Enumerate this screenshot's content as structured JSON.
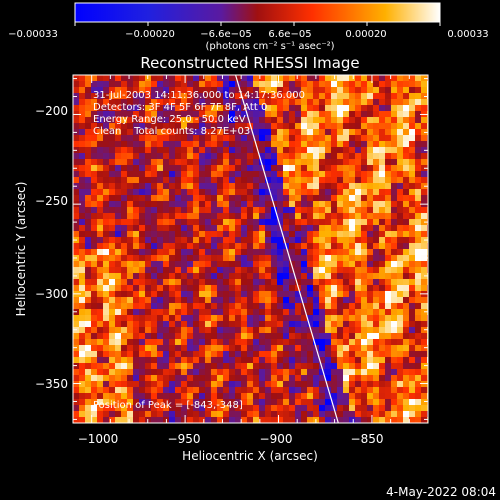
{
  "chart_data": {
    "type": "heatmap",
    "title": "Reconstructed RHESSI Image",
    "xlabel": "Heliocentric X (arcsec)",
    "ylabel": "Heliocentric Y (arcsec)",
    "xlim": [
      -1010,
      -820
    ],
    "ylim": [
      -372,
      -178
    ],
    "x_ticks": [
      -1000,
      -950,
      -900,
      -850
    ],
    "x_tick_labels": [
      "−1000",
      "−950",
      "−900",
      "−850"
    ],
    "y_ticks": [
      -200,
      -250,
      -300,
      -350
    ],
    "y_tick_labels": [
      "−200",
      "−250",
      "−300",
      "−350"
    ],
    "colorbar": {
      "min": -0.00033,
      "max": 0.00033,
      "tick_labels": [
        "−0.00033",
        "−0.00020",
        "−6.6e−05",
        "6.6e−05",
        "0.00020",
        "0.00033"
      ],
      "units": "(photons cm⁻² s⁻¹ asec⁻²)",
      "colors": [
        "#0000ff",
        "#5a1aa0",
        "#a01010",
        "#ff3000",
        "#ffb000",
        "#ffffff"
      ]
    },
    "annotations": [
      "31-Jul-2003 14:11:36.000 to 14:17:36.000",
      "Detectors: 3F 4F 5F 6F 7F 8F, Att 0",
      "Energy Range: 25.0 - 50.0 keV",
      "Clean    Total counts: 8.27E+03"
    ],
    "peak_label": "Position of Peak = [-843,-348]",
    "limb_line": [
      [
        -923,
        -178
      ],
      [
        -868,
        -372
      ]
    ],
    "grid": false
  },
  "footer": {
    "date": "4-May-2022 08:04"
  }
}
